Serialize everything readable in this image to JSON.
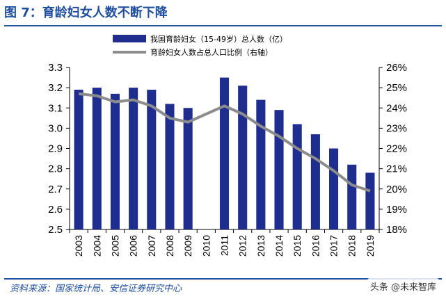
{
  "header": {
    "title": "图 7：育龄妇女人数不断下降"
  },
  "footer": {
    "source": "资料来源：国家统计局、安信证券研究中心",
    "watermark": "头条 @未来智库"
  },
  "colors": {
    "bar": "#1f2d8f",
    "line": "#8c8c8c",
    "accent": "#1f4e9e"
  },
  "chart_data": {
    "type": "bar",
    "categories": [
      "2003",
      "2004",
      "2005",
      "2006",
      "2007",
      "2008",
      "2009",
      "2010",
      "2011",
      "2012",
      "2013",
      "2014",
      "2015",
      "2016",
      "2017",
      "2018",
      "2019"
    ],
    "series": [
      {
        "name": "我国育龄妇女（15-49岁）总人数（亿）",
        "type": "bar",
        "axis": "left",
        "values": [
          3.19,
          3.2,
          3.17,
          3.2,
          3.19,
          3.12,
          3.1,
          null,
          3.25,
          3.21,
          3.14,
          3.09,
          3.02,
          2.97,
          2.9,
          2.82,
          2.78
        ]
      },
      {
        "name": "育龄妇女人数占总人口比例（右轴）",
        "type": "line",
        "axis": "right",
        "values": [
          24.7,
          24.6,
          24.3,
          24.4,
          24.1,
          23.5,
          23.3,
          null,
          24.1,
          23.7,
          23.1,
          22.6,
          22.0,
          21.5,
          20.9,
          20.2,
          19.9
        ]
      }
    ],
    "y_left": {
      "min": 2.5,
      "max": 3.3,
      "ticks": [
        "2.5",
        "2.6",
        "2.7",
        "2.8",
        "2.9",
        "3.0",
        "3.1",
        "3.2",
        "3.3"
      ]
    },
    "y_right": {
      "min": 18,
      "max": 26,
      "ticks": [
        "18%",
        "19%",
        "20%",
        "21%",
        "22%",
        "23%",
        "24%",
        "25%",
        "26%"
      ]
    },
    "legend": "top-right",
    "grid": false
  }
}
